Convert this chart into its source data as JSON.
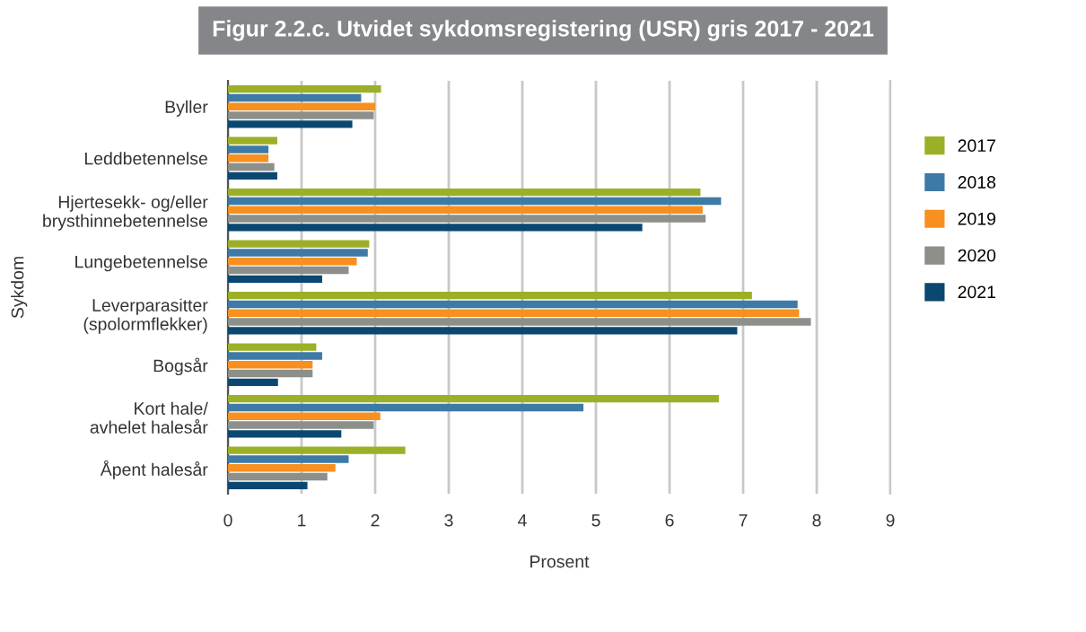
{
  "chart_data": {
    "type": "bar",
    "orientation": "horizontal",
    "title": "Figur 2.2.c. Utvidet sykdomsregistering (USR) gris 2017 - 2021",
    "xlabel": "Prosent",
    "ylabel": "Sykdom",
    "categories": [
      "Byller",
      "Leddbetennelse",
      "Hjertesekk- og/eller\nbrysthinnebetennelse",
      "Lungebetennelse",
      "Leverparasitter\n(spolormflekker)",
      "Bogsår",
      "Kort hale/\navhelet halesår",
      "Åpent halesår"
    ],
    "series": [
      {
        "name": "2017",
        "color": "#9bb027",
        "values": [
          2.08,
          0.67,
          6.42,
          1.92,
          7.12,
          1.2,
          6.67,
          2.41
        ]
      },
      {
        "name": "2018",
        "color": "#3e7aa6",
        "values": [
          1.81,
          0.55,
          6.7,
          1.9,
          7.74,
          1.28,
          4.83,
          1.64
        ]
      },
      {
        "name": "2019",
        "color": "#f7901e",
        "values": [
          2.0,
          0.55,
          6.45,
          1.75,
          7.76,
          1.15,
          2.07,
          1.46
        ]
      },
      {
        "name": "2020",
        "color": "#8c8f8a",
        "values": [
          1.98,
          0.63,
          6.49,
          1.64,
          7.92,
          1.15,
          1.98,
          1.35
        ]
      },
      {
        "name": "2021",
        "color": "#0b4871",
        "values": [
          1.69,
          0.67,
          5.63,
          1.28,
          6.92,
          0.68,
          1.54,
          1.08
        ]
      }
    ],
    "xlim": [
      0,
      9
    ],
    "xticks": [
      0,
      1,
      2,
      3,
      4,
      5,
      6,
      7,
      8,
      9
    ],
    "grid": "x",
    "legend": "right"
  }
}
